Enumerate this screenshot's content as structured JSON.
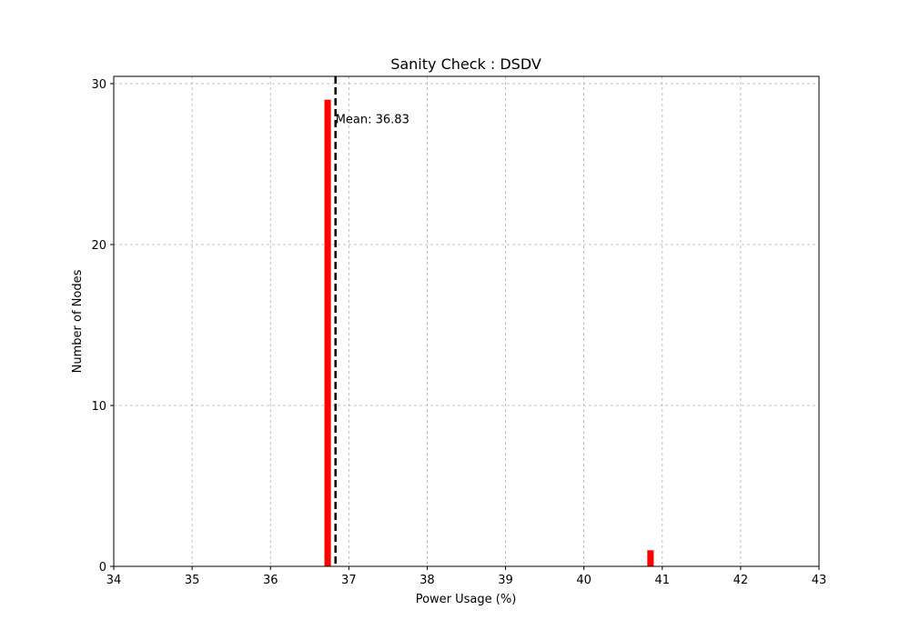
{
  "chart_data": {
    "type": "bar",
    "title": "Sanity Check : DSDV",
    "xlabel": "Power Usage (%)",
    "ylabel": "Number of Nodes",
    "xlim": [
      34,
      43
    ],
    "ylim": [
      0,
      30.45
    ],
    "xticks": [
      "34",
      "35",
      "36",
      "37",
      "38",
      "39",
      "40",
      "41",
      "42",
      "43"
    ],
    "yticks": [
      "0",
      "10",
      "20",
      "30"
    ],
    "grid": true,
    "bar_color": "#ff0000",
    "bar_width": 0.082,
    "bars": [
      {
        "x": 36.73,
        "value": 29
      },
      {
        "x": 40.85,
        "value": 1
      }
    ],
    "mean_line": {
      "x": 36.83,
      "label": "Mean: 36.83",
      "color": "#000000"
    }
  }
}
